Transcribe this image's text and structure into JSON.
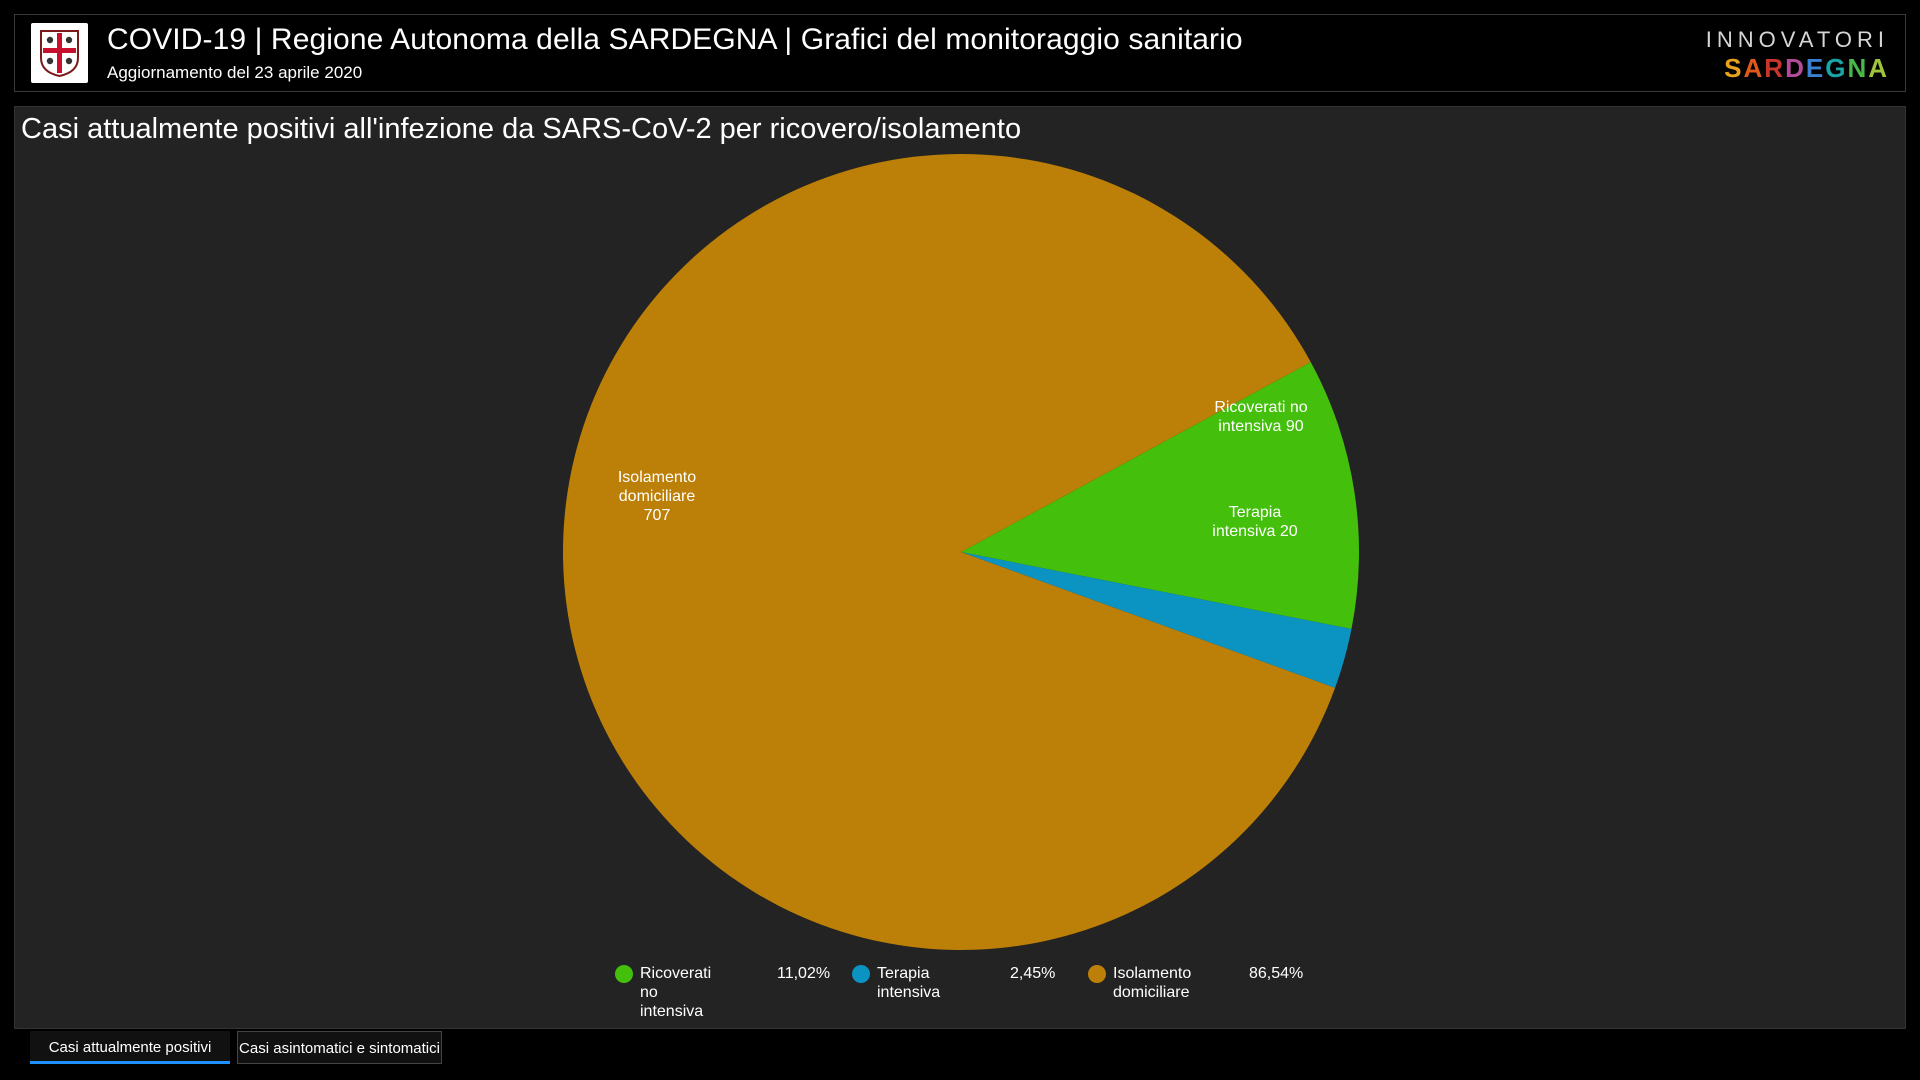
{
  "header": {
    "title": "COVID-19 | Regione Autonoma della SARDEGNA | Grafici del monitoraggio sanitario",
    "subtitle": "Aggiornamento del 23 aprile 2020",
    "brand_top": "INNOVATORI",
    "brand_bottom_letters": [
      "S",
      "A",
      "R",
      "D",
      "E",
      "G",
      "N",
      "A"
    ],
    "brand_bottom_colors": [
      "#e8a21c",
      "#e0581a",
      "#c8352a",
      "#b54a9a",
      "#3a7fd0",
      "#1aa6a6",
      "#49b84a",
      "#9dc43a"
    ],
    "logo_icon": "sardinia-coat-of-arms-icon"
  },
  "chart_data": {
    "type": "pie",
    "title": "Casi attualmente positivi all'infezione da SARS-CoV-2 per ricovero/isolamento",
    "slices": [
      {
        "label": "Ricoverati no intensiva",
        "value": 90,
        "percent": "11,02%",
        "color": "#43bf0c",
        "slice_label_lines": [
          "Ricoverati no",
          "intensiva 90"
        ]
      },
      {
        "label": "Terapia intensiva",
        "value": 20,
        "percent": "2,45%",
        "color": "#0b93c1",
        "slice_label_lines": [
          "Terapia",
          "intensiva 20"
        ]
      },
      {
        "label": "Isolamento domiciliare",
        "value": 707,
        "percent": "86,54%",
        "color": "#bc7f07",
        "slice_label_lines": [
          "Isolamento",
          "domiciliare",
          "707"
        ]
      }
    ],
    "legend": {
      "position": "bottom",
      "items": [
        {
          "label": "Ricoverati no\nintensiva",
          "percent": "11,02%",
          "color": "#43bf0c"
        },
        {
          "label": "Terapia intensiva",
          "percent": "2,45%",
          "color": "#0b93c1"
        },
        {
          "label": "Isolamento\ndomiciliare",
          "percent": "86,54%",
          "color": "#bc7f07"
        }
      ]
    }
  },
  "tabs": [
    {
      "label": "Casi attualmente positivi",
      "active": true
    },
    {
      "label": "Casi asintomatici e sintomatici",
      "active": false
    }
  ]
}
